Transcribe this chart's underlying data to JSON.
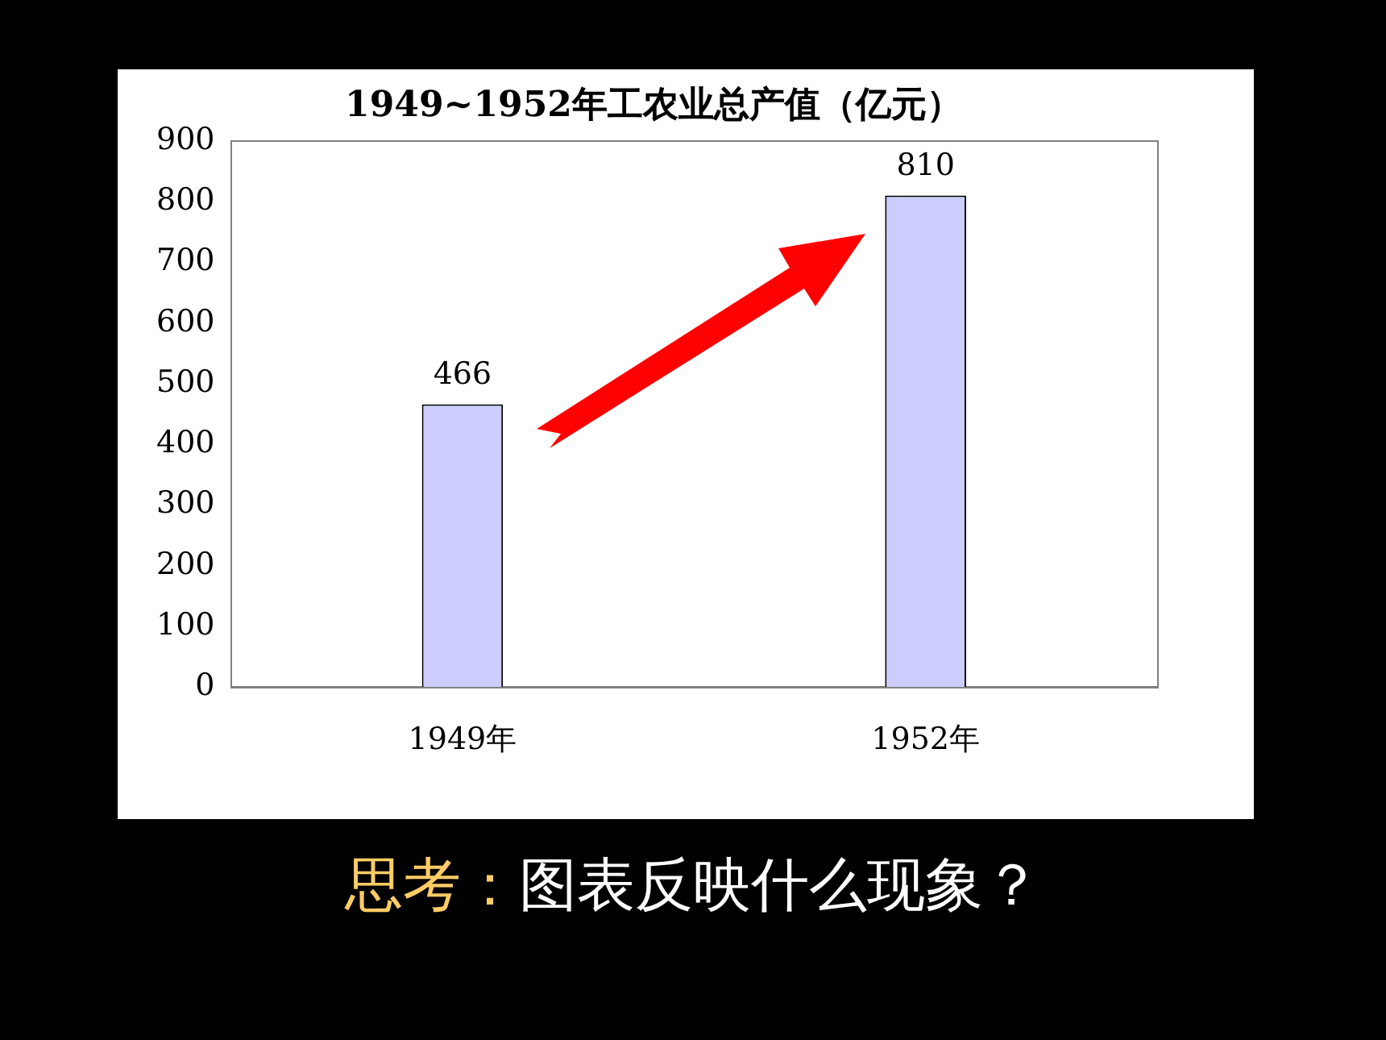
{
  "chart_data": {
    "type": "bar",
    "title": "1949~1952年工农业总产值（亿元）",
    "categories": [
      "1949年",
      "1952年"
    ],
    "values": [
      466,
      810
    ],
    "color": "#ccccff",
    "ylim": [
      0,
      900
    ],
    "yticks": [
      0,
      100,
      200,
      300,
      400,
      500,
      600,
      700,
      800,
      900
    ],
    "data_labels": true,
    "annotations": [
      "思考：",
      "图表反映什么现象？"
    ]
  }
}
